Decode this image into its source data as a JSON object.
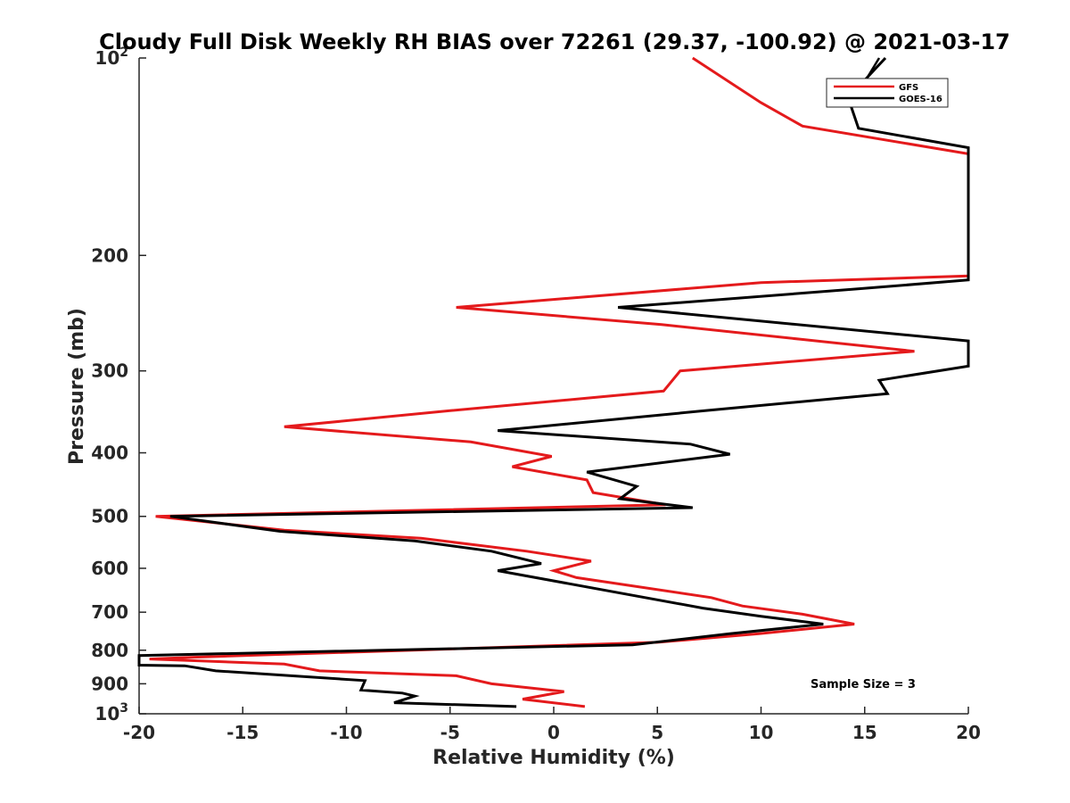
{
  "chart_data": {
    "type": "line",
    "title": "Cloudy Full Disk Weekly RH BIAS over 72261 (29.37, -100.92) @ 2021-03-17",
    "xlabel": "Relative Humidity (%)",
    "ylabel": "Pressure (mb)",
    "xlim": [
      -20,
      20
    ],
    "ylim": [
      100,
      1000
    ],
    "yscale": "log",
    "y_reversed": true,
    "grid": false,
    "legend_position": "top-right",
    "xticks": [
      -20,
      -15,
      -10,
      -5,
      0,
      5,
      10,
      15,
      20
    ],
    "xtick_labels": [
      "-20",
      "-15",
      "-10",
      "-5",
      "0",
      "5",
      "10",
      "15",
      "20"
    ],
    "yticks": [
      100,
      200,
      300,
      400,
      500,
      600,
      700,
      800,
      900,
      1000
    ],
    "ytick_labels": [
      {
        "base": "10",
        "exp": "2"
      },
      {
        "base": "200"
      },
      {
        "base": "300"
      },
      {
        "base": "400"
      },
      {
        "base": "500"
      },
      {
        "base": "600"
      },
      {
        "base": "700"
      },
      {
        "base": "800"
      },
      {
        "base": "900"
      },
      {
        "base": "10",
        "exp": "3"
      }
    ],
    "annotation": "Sample Size = 3",
    "series": [
      {
        "name": "GFS",
        "color": "#e41a1c",
        "points": [
          [
            1.5,
            975
          ],
          [
            -1.5,
            950
          ],
          [
            0.5,
            925
          ],
          [
            -3,
            900
          ],
          [
            -4.7,
            875
          ],
          [
            -11.3,
            860
          ],
          [
            -13,
            840
          ],
          [
            -19.5,
            825
          ],
          [
            -17.5,
            820
          ],
          [
            5,
            778
          ],
          [
            9.9,
            755
          ],
          [
            14.5,
            730
          ],
          [
            12,
            705
          ],
          [
            9.1,
            685
          ],
          [
            7.6,
            665
          ],
          [
            1.1,
            620
          ],
          [
            0,
            605
          ],
          [
            1.8,
            585
          ],
          [
            -1.3,
            565
          ],
          [
            -6.4,
            540
          ],
          [
            -13,
            525
          ],
          [
            -19.2,
            500
          ],
          [
            5.4,
            480
          ],
          [
            1.9,
            460
          ],
          [
            1.6,
            440
          ],
          [
            -2,
            420
          ],
          [
            -0.1,
            405
          ],
          [
            -4,
            385
          ],
          [
            -13,
            365
          ],
          [
            -5,
            345
          ],
          [
            5.3,
            322
          ],
          [
            6.1,
            300
          ],
          [
            17.4,
            280
          ],
          [
            5.2,
            255
          ],
          [
            -4.7,
            240
          ],
          [
            10,
            220
          ],
          [
            20,
            215
          ],
          [
            20,
            140
          ],
          [
            12,
            127
          ],
          [
            10,
            117
          ],
          [
            6.7,
            100
          ]
        ]
      },
      {
        "name": "GOES-16",
        "color": "#000000",
        "points": [
          [
            -1.8,
            975
          ],
          [
            -7.7,
            962
          ],
          [
            -6.7,
            940
          ],
          [
            -7.3,
            930
          ],
          [
            -9.3,
            920
          ],
          [
            -9.1,
            890
          ],
          [
            -16.3,
            860
          ],
          [
            -17.8,
            845
          ],
          [
            -20,
            843
          ],
          [
            -20,
            815
          ],
          [
            3.8,
            785
          ],
          [
            8.5,
            755
          ],
          [
            13,
            730
          ],
          [
            10,
            710
          ],
          [
            7.2,
            690
          ],
          [
            -2.7,
            605
          ],
          [
            -0.6,
            590
          ],
          [
            -3,
            565
          ],
          [
            -6.7,
            545
          ],
          [
            -13.2,
            527
          ],
          [
            -18.5,
            500
          ],
          [
            6.7,
            485
          ],
          [
            3.2,
            470
          ],
          [
            4,
            450
          ],
          [
            1.6,
            428
          ],
          [
            8.5,
            402
          ],
          [
            6.6,
            388
          ],
          [
            -2.7,
            370
          ],
          [
            7.3,
            345
          ],
          [
            16.1,
            325
          ],
          [
            15.7,
            310
          ],
          [
            20,
            295
          ],
          [
            20,
            270
          ],
          [
            3.1,
            240
          ],
          [
            14.6,
            225
          ],
          [
            20,
            218
          ],
          [
            20,
            137
          ],
          [
            14.7,
            128
          ],
          [
            14.2,
            115
          ],
          [
            16,
            100
          ]
        ]
      }
    ]
  }
}
